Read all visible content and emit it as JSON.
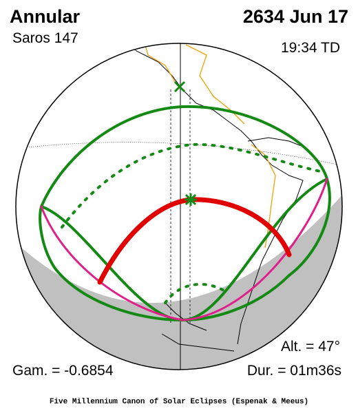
{
  "header": {
    "type": "Annular",
    "saros": "Saros 147",
    "date": "2634 Jun 17",
    "time": "19:34 TD"
  },
  "details": {
    "altitude": "Alt. = 47°",
    "gamma": "Gam. = -0.6854",
    "duration": "Dur. = 01m36s"
  },
  "footer": {
    "credit": "Five Millennium Canon of Solar Eclipses (Espenak & Meeus)"
  }
}
